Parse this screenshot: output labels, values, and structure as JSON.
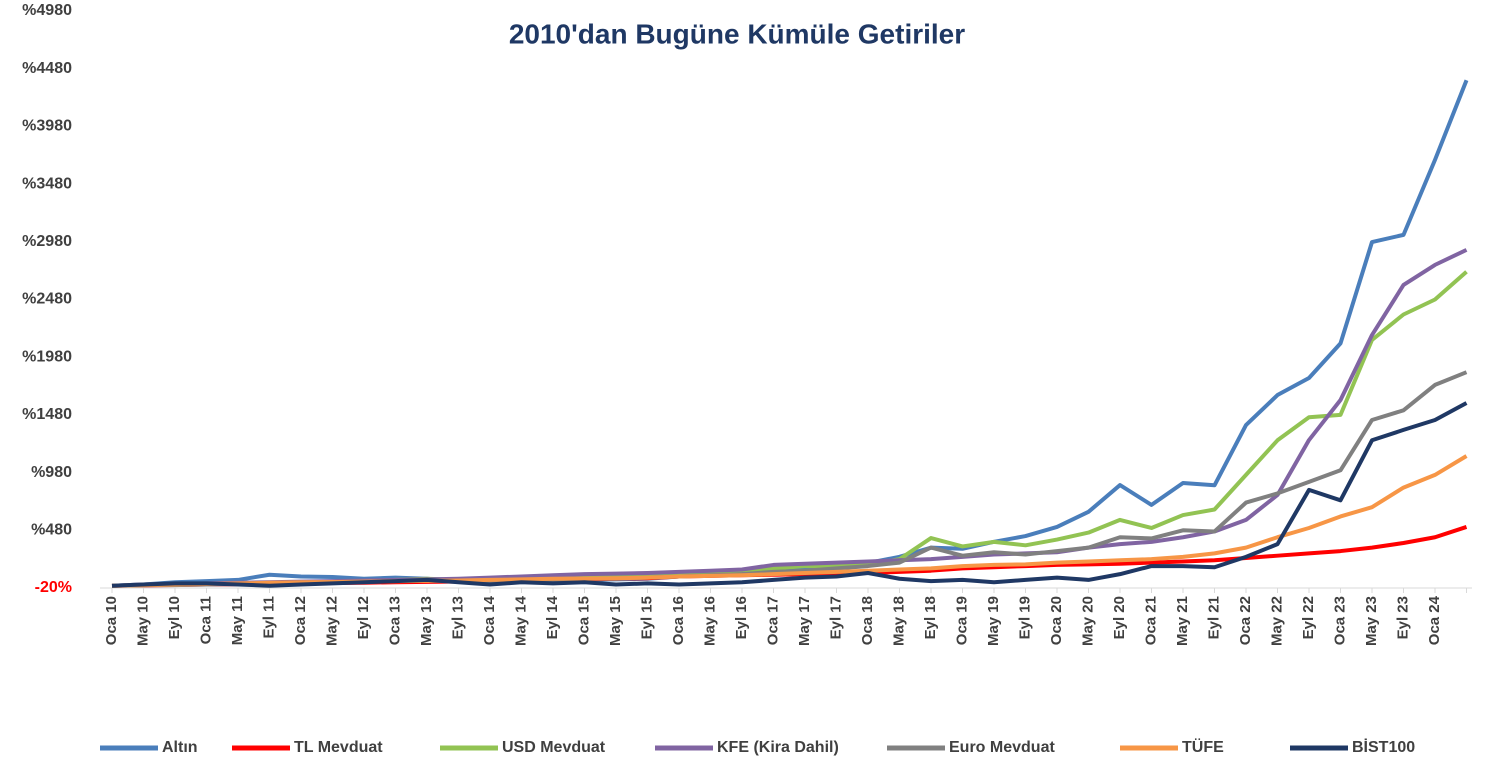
{
  "chart_data": {
    "type": "line",
    "title": "2010'dan Bugüne Kümüle Getiriler",
    "categories": [
      "Oca 10",
      "May 10",
      "Eyl 10",
      "Oca 11",
      "May 11",
      "Eyl 11",
      "Oca 12",
      "May 12",
      "Eyl 12",
      "Oca 13",
      "May 13",
      "Eyl 13",
      "Oca 14",
      "May 14",
      "Eyl 14",
      "Oca 15",
      "May 15",
      "Eyl 15",
      "Oca 16",
      "May 16",
      "Eyl 16",
      "Oca 17",
      "May 17",
      "Eyl 17",
      "Oca 18",
      "May 18",
      "Eyl 18",
      "Oca 19",
      "May 19",
      "Eyl 19",
      "Oca 20",
      "May 20",
      "Eyl 20",
      "Oca 21",
      "May 21",
      "Eyl 21",
      "Oca 22",
      "May 22",
      "Eyl 22",
      "Oca 23",
      "May 23",
      "Eyl 23",
      "Oca 24",
      null
    ],
    "series": [
      {
        "name": "Altın",
        "color": "#4a7ebb",
        "values": [
          0,
          10,
          30,
          40,
          50,
          95,
          80,
          75,
          60,
          70,
          60,
          40,
          30,
          40,
          50,
          50,
          55,
          60,
          80,
          100,
          110,
          130,
          150,
          170,
          197,
          250,
          330,
          320,
          380,
          430,
          509,
          640,
          872,
          700,
          890,
          870,
          1392,
          1652,
          1800,
          2100,
          2978,
          3040,
          3690,
          4380
        ]
      },
      {
        "name": "TL Mevduat",
        "color": "#ff0000",
        "values": [
          0,
          3,
          6,
          10,
          13,
          16,
          20,
          23,
          26,
          30,
          33,
          36,
          40,
          45,
          50,
          55,
          60,
          65,
          80,
          85,
          90,
          95,
          100,
          105,
          110,
          120,
          130,
          150,
          160,
          170,
          180,
          185,
          190,
          200,
          210,
          220,
          240,
          260,
          280,
          300,
          330,
          370,
          420,
          509
        ]
      },
      {
        "name": "USD Mevduat",
        "color": "#92c353",
        "values": [
          0,
          5,
          10,
          15,
          20,
          25,
          30,
          35,
          40,
          50,
          60,
          50,
          50,
          60,
          60,
          70,
          80,
          90,
          110,
          120,
          130,
          150,
          170,
          170,
          180,
          230,
          413,
          340,
          380,
          350,
          400,
          460,
          570,
          500,
          612,
          660,
          960,
          1260,
          1460,
          1480,
          2130,
          2350,
          2480,
          2720
        ]
      },
      {
        "name": "KFE (Kira Dahil)",
        "color": "#8064a2",
        "values": [
          0,
          10,
          15,
          20,
          25,
          30,
          35,
          40,
          45,
          50,
          55,
          60,
          70,
          80,
          90,
          100,
          105,
          110,
          120,
          130,
          140,
          180,
          190,
          200,
          210,
          220,
          230,
          250,
          270,
          280,
          290,
          330,
          360,
          380,
          420,
          470,
          570,
          786,
          1262,
          1609,
          2172,
          2606,
          2780,
          2910
        ]
      },
      {
        "name": "Euro Mevduat",
        "color": "#808080",
        "values": [
          0,
          5,
          5,
          10,
          15,
          20,
          25,
          30,
          35,
          40,
          45,
          40,
          40,
          45,
          50,
          60,
          60,
          70,
          80,
          90,
          100,
          120,
          130,
          150,
          170,
          200,
          330,
          260,
          290,
          270,
          300,
          330,
          420,
          410,
          480,
          470,
          720,
          800,
          900,
          1000,
          1436,
          1520,
          1740,
          1850
        ]
      },
      {
        "name": "TÜFE",
        "color": "#f79646",
        "values": [
          0,
          5,
          10,
          15,
          20,
          25,
          30,
          32,
          35,
          40,
          42,
          45,
          50,
          55,
          60,
          62,
          65,
          70,
          80,
          85,
          90,
          100,
          110,
          120,
          130,
          140,
          150,
          170,
          180,
          185,
          200,
          210,
          220,
          230,
          250,
          280,
          330,
          420,
          500,
          600,
          680,
          850,
          960,
          1124
        ]
      },
      {
        "name": "BİST100",
        "color": "#1f3864",
        "values": [
          0,
          10,
          20,
          20,
          10,
          0,
          10,
          20,
          30,
          40,
          50,
          30,
          10,
          30,
          20,
          30,
          10,
          20,
          10,
          20,
          30,
          50,
          70,
          80,
          110,
          60,
          40,
          50,
          30,
          50,
          70,
          50,
          100,
          170,
          170,
          160,
          250,
          360,
          830,
          740,
          1260,
          1350,
          1436,
          1583
        ]
      }
    ],
    "ylim": [
      -20,
      4980
    ],
    "yticks": [
      {
        "value": -20,
        "label": "-20%"
      },
      {
        "value": 480,
        "label": "%480"
      },
      {
        "value": 980,
        "label": "%980"
      },
      {
        "value": 1480,
        "label": "%1480"
      },
      {
        "value": 1980,
        "label": "%1980"
      },
      {
        "value": 2480,
        "label": "%2480"
      },
      {
        "value": 2980,
        "label": "%2980"
      },
      {
        "value": 3480,
        "label": "%3480"
      },
      {
        "value": 3980,
        "label": "%3980"
      },
      {
        "value": 4480,
        "label": "%4480"
      },
      {
        "value": 4980,
        "label": "%4980"
      }
    ],
    "legend": "bottom"
  }
}
